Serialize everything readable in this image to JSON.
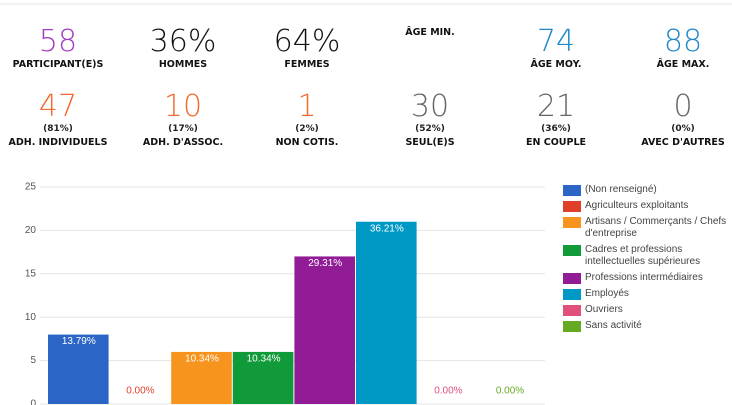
{
  "stats": [
    {
      "value": "58",
      "label": "PARTICIPANT(E)S",
      "color": "#a23cc2"
    },
    {
      "value": "36%",
      "label": "HOMMES",
      "color": "#111111"
    },
    {
      "value": "64%",
      "label": "FEMMES",
      "color": "#111111"
    },
    {
      "label": "ÂGE MIN.",
      "color": "#111111"
    },
    {
      "value": "74",
      "label": "ÂGE MOY.",
      "color": "#1e88c8"
    },
    {
      "value": "88",
      "label": "ÂGE MAX.",
      "color": "#1e88c8"
    },
    {
      "value": "47",
      "sub": "(81%)",
      "label": "ADH. INDIVIDUELS",
      "color": "#f26a2e"
    },
    {
      "value": "10",
      "sub": "(17%)",
      "label": "ADH. D'ASSOC.",
      "color": "#f26a2e"
    },
    {
      "value": "1",
      "sub": "(2%)",
      "label": "NON COTIS.",
      "color": "#f26a2e"
    },
    {
      "value": "30",
      "sub": "(52%)",
      "label": "SEUL(E)S",
      "color": "#666666"
    },
    {
      "value": "21",
      "sub": "(36%)",
      "label": "EN COUPLE",
      "color": "#666666"
    },
    {
      "value": "0",
      "sub": "(0%)",
      "label": "AVEC D'AUTRES",
      "color": "#666666"
    }
  ],
  "chart_data": {
    "type": "bar",
    "categories": [
      "(Non renseigné)",
      "Agriculteurs exploitants",
      "Artisans / Commerçants / Chefs d'entreprise",
      "Cadres et professions intellectuelles supérieures",
      "Professions intermédiaires",
      "Employés",
      "Ouvriers",
      "Sans activité"
    ],
    "values": [
      8,
      0,
      6,
      6,
      17,
      21,
      0,
      0
    ],
    "percent_labels": [
      "13.79%",
      "0.00%",
      "10.34%",
      "10.34%",
      "29.31%",
      "36.21%",
      "0.00%",
      "0.00%"
    ],
    "colors": [
      "#2b66c6",
      "#e0402a",
      "#f7941d",
      "#109a3a",
      "#921b96",
      "#0099c6",
      "#e0507a",
      "#66aa22"
    ],
    "ylim": [
      0,
      25
    ],
    "yticks": [
      0,
      5,
      10,
      15,
      20,
      25
    ],
    "grid": true,
    "legend": "right"
  }
}
